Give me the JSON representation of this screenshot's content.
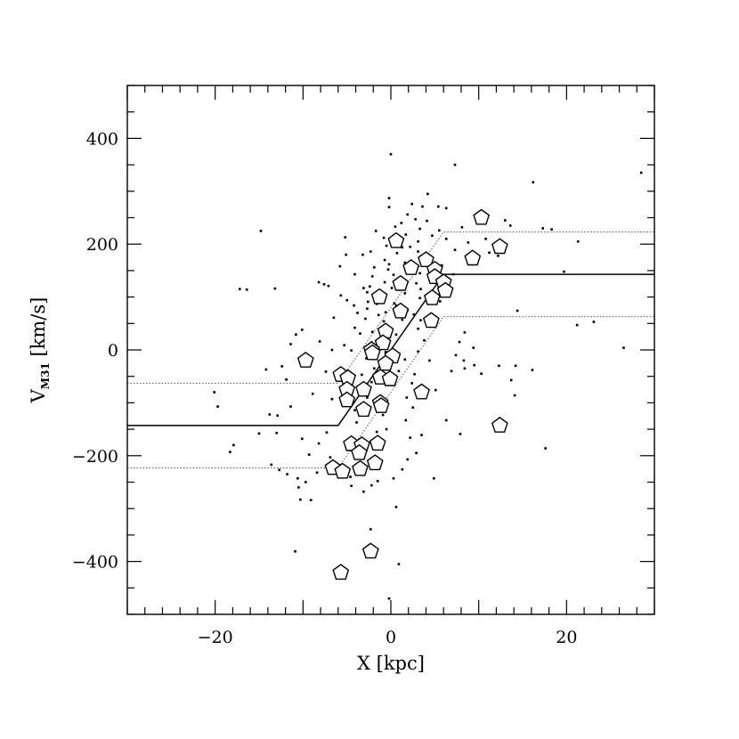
{
  "chart_data": {
    "type": "scatter",
    "xlabel": "X [kpc]",
    "ylabel_main": "V",
    "ylabel_sub": "M31",
    "ylabel_unit": " [km/s]",
    "xlim": [
      -30,
      30
    ],
    "ylim": [
      -500,
      500
    ],
    "x_ticks": [
      -20,
      0,
      20
    ],
    "x_tick_labels": [
      "−20",
      "0",
      "20"
    ],
    "y_ticks": [
      -400,
      -200,
      0,
      200,
      400
    ],
    "y_tick_labels": [
      "−400",
      "−200",
      "0",
      "200",
      "400"
    ],
    "x_minor_step": 2,
    "y_minor_step": 50,
    "grid": false,
    "lines": [
      {
        "style": "solid",
        "x": [
          -30,
          -6,
          6,
          30
        ],
        "y": [
          -143,
          -143,
          143,
          143
        ]
      },
      {
        "style": "dotted",
        "x": [
          -30,
          -6,
          6,
          30
        ],
        "y": [
          -63,
          -63,
          223,
          223
        ]
      },
      {
        "style": "dotted",
        "x": [
          -30,
          -6,
          6,
          30
        ],
        "y": [
          -223,
          -223,
          63,
          63
        ]
      }
    ],
    "pentagons": [
      [
        10.3,
        250
      ],
      [
        12.4,
        195
      ],
      [
        9.3,
        173
      ],
      [
        0.6,
        206
      ],
      [
        2.3,
        155
      ],
      [
        4,
        170
      ],
      [
        5,
        152
      ],
      [
        5,
        138
      ],
      [
        6,
        128
      ],
      [
        6.2,
        112
      ],
      [
        4.7,
        98
      ],
      [
        4.6,
        55
      ],
      [
        1.1,
        125
      ],
      [
        1.1,
        73
      ],
      [
        -1.3,
        100
      ],
      [
        -0.6,
        35
      ],
      [
        -0.9,
        13
      ],
      [
        -2.2,
        0
      ],
      [
        -2.1,
        -6
      ],
      [
        0.2,
        -12
      ],
      [
        -0.6,
        -26
      ],
      [
        -1.2,
        -52
      ],
      [
        -0.1,
        -55
      ],
      [
        -5.7,
        -47
      ],
      [
        -4.9,
        -53
      ],
      [
        -5,
        -75
      ],
      [
        -3.1,
        -75
      ],
      [
        -5,
        -95
      ],
      [
        -1.2,
        -100
      ],
      [
        -1.1,
        -106
      ],
      [
        -3.1,
        -113
      ],
      [
        3.5,
        -80
      ],
      [
        12.4,
        -143
      ],
      [
        -4.5,
        -178
      ],
      [
        -3.3,
        -180
      ],
      [
        -1.5,
        -177
      ],
      [
        -3.6,
        -195
      ],
      [
        -1.8,
        -214
      ],
      [
        -6.6,
        -223
      ],
      [
        -5.5,
        -230
      ],
      [
        -3.5,
        -225
      ],
      [
        -2.3,
        -381
      ],
      [
        -5.7,
        -421
      ],
      [
        -9.7,
        -20
      ]
    ],
    "points": [
      [
        0,
        370
      ],
      [
        7.3,
        350
      ],
      [
        28.5,
        335
      ],
      [
        16.2,
        317
      ],
      [
        4.2,
        295
      ],
      [
        -0.2,
        287
      ],
      [
        -0.2,
        270
      ],
      [
        2.4,
        276
      ],
      [
        3.6,
        271
      ],
      [
        5.4,
        271
      ],
      [
        6.3,
        268
      ],
      [
        1.9,
        256
      ],
      [
        2.8,
        247
      ],
      [
        4.1,
        244
      ],
      [
        1.2,
        240
      ],
      [
        0.5,
        233
      ],
      [
        3.3,
        229
      ],
      [
        5.5,
        226
      ],
      [
        8.1,
        232
      ],
      [
        13,
        245
      ],
      [
        13.6,
        235
      ],
      [
        -14.8,
        225
      ],
      [
        1.7,
        218
      ],
      [
        4.7,
        216
      ],
      [
        -5.2,
        213
      ],
      [
        -0.8,
        212
      ],
      [
        3.1,
        205
      ],
      [
        6.3,
        210
      ],
      [
        8.8,
        203
      ],
      [
        10.8,
        210
      ],
      [
        17.3,
        230
      ],
      [
        18.3,
        228
      ],
      [
        21.3,
        205
      ],
      [
        2.2,
        195
      ],
      [
        3.1,
        186
      ],
      [
        0.7,
        183
      ],
      [
        -2.3,
        186
      ],
      [
        7.3,
        189
      ],
      [
        11.2,
        184
      ],
      [
        12.2,
        178
      ],
      [
        3.5,
        178
      ],
      [
        -0.7,
        170
      ],
      [
        -0.2,
        162
      ],
      [
        1.6,
        165
      ],
      [
        5.8,
        160
      ],
      [
        -1.9,
        156
      ],
      [
        -0.3,
        152
      ],
      [
        2.7,
        148
      ],
      [
        0.3,
        142
      ],
      [
        -2.1,
        139
      ],
      [
        3.3,
        145
      ],
      [
        -4.1,
        143
      ],
      [
        7.1,
        143
      ],
      [
        19.7,
        148
      ],
      [
        -8.2,
        128
      ],
      [
        -7.6,
        124
      ],
      [
        -7.1,
        121
      ],
      [
        -0.7,
        128
      ],
      [
        2.9,
        126
      ],
      [
        -2.4,
        120
      ],
      [
        -17.2,
        115
      ],
      [
        -16.4,
        114
      ],
      [
        -13.2,
        116
      ],
      [
        0.1,
        117
      ],
      [
        3.4,
        115
      ],
      [
        -2.7,
        109
      ],
      [
        -0.6,
        105
      ],
      [
        1.6,
        107
      ],
      [
        -5.7,
        103
      ],
      [
        3.3,
        98
      ],
      [
        -5,
        94
      ],
      [
        -2.6,
        91
      ],
      [
        5.6,
        92
      ],
      [
        0.4,
        88
      ],
      [
        -4.2,
        84
      ],
      [
        0.6,
        84
      ],
      [
        -2.7,
        78
      ],
      [
        1.9,
        75
      ],
      [
        -3.8,
        70
      ],
      [
        -0.6,
        71
      ],
      [
        -1.4,
        66
      ],
      [
        2.6,
        67
      ],
      [
        -6.5,
        61
      ],
      [
        -2.9,
        59
      ],
      [
        1.3,
        57
      ],
      [
        3.4,
        56
      ],
      [
        -10.1,
        38
      ],
      [
        -10.8,
        29
      ],
      [
        -4.1,
        42
      ],
      [
        -0.9,
        40
      ],
      [
        3.1,
        40
      ],
      [
        -3.5,
        31
      ],
      [
        0.6,
        29
      ],
      [
        -11.4,
        11
      ],
      [
        -8.1,
        16
      ],
      [
        -5.3,
        9
      ],
      [
        -2.2,
        14
      ],
      [
        3.8,
        18
      ],
      [
        7.8,
        15
      ],
      [
        9.4,
        4
      ],
      [
        -6.7,
        0
      ],
      [
        -4.5,
        -1
      ],
      [
        -0.6,
        -4
      ],
      [
        3.1,
        -3
      ],
      [
        8.3,
        -20
      ],
      [
        9.5,
        -29
      ],
      [
        -2.8,
        -16
      ],
      [
        1.6,
        -18
      ],
      [
        7.4,
        -10
      ],
      [
        4.4,
        -20
      ],
      [
        8.4,
        -35
      ],
      [
        12.3,
        -30
      ],
      [
        10.3,
        -45
      ],
      [
        -12.4,
        -31
      ],
      [
        -14.2,
        -37
      ],
      [
        -7.4,
        -41
      ],
      [
        0.9,
        -40
      ],
      [
        2.7,
        -46
      ],
      [
        6.9,
        -40
      ],
      [
        13.7,
        -57
      ],
      [
        16.1,
        -38
      ],
      [
        -11.9,
        -56
      ],
      [
        -4.6,
        -64
      ],
      [
        -2.2,
        -61
      ],
      [
        2.4,
        -63
      ],
      [
        5.1,
        -76
      ],
      [
        14.1,
        -86
      ],
      [
        -20.1,
        -80
      ],
      [
        -19.7,
        -107
      ],
      [
        -11.4,
        -107
      ],
      [
        -13.8,
        -122
      ],
      [
        -12.9,
        -124
      ],
      [
        -8.9,
        -83
      ],
      [
        -6.7,
        -93
      ],
      [
        -2.7,
        -90
      ],
      [
        1.8,
        -90
      ],
      [
        2.5,
        -109
      ],
      [
        -0.9,
        -123
      ],
      [
        1.7,
        -133
      ],
      [
        6.3,
        -133
      ],
      [
        -15,
        -158
      ],
      [
        -13,
        -157
      ],
      [
        -10.1,
        -168
      ],
      [
        -8.2,
        -177
      ],
      [
        -7.3,
        -156
      ],
      [
        -18.3,
        -193
      ],
      [
        -17.9,
        -180
      ],
      [
        -9.3,
        -198
      ],
      [
        -6.9,
        -203
      ],
      [
        -1.6,
        -155
      ],
      [
        -13.6,
        -217
      ],
      [
        -12.7,
        -227
      ],
      [
        -11.8,
        -235
      ],
      [
        -10.6,
        -243
      ],
      [
        -10.5,
        -260
      ],
      [
        -9.7,
        -250
      ],
      [
        -8.4,
        -232
      ],
      [
        -6.7,
        -229
      ],
      [
        -4.6,
        -240
      ],
      [
        -4.5,
        -257
      ],
      [
        -2.2,
        -256
      ],
      [
        -1.5,
        -248
      ],
      [
        0.3,
        -243
      ],
      [
        -3.1,
        -268
      ],
      [
        0.6,
        -297
      ],
      [
        -10.3,
        -283
      ],
      [
        -9.1,
        -284
      ],
      [
        -10.9,
        -381
      ],
      [
        -2.3,
        -339
      ],
      [
        0.9,
        -405
      ],
      [
        -0.2,
        -470
      ],
      [
        1.3,
        -226
      ],
      [
        1.9,
        -207
      ],
      [
        4.9,
        -243
      ],
      [
        2.9,
        -195
      ],
      [
        17.6,
        -186
      ],
      [
        7.9,
        -159
      ],
      [
        21.2,
        47
      ],
      [
        14.4,
        74
      ],
      [
        23.1,
        53
      ],
      [
        26.5,
        4
      ],
      [
        14.2,
        -30
      ],
      [
        8.4,
        33
      ],
      [
        -0.5,
        197
      ],
      [
        1.3,
        194
      ],
      [
        -1.7,
        225
      ],
      [
        -3.2,
        180
      ],
      [
        -5.1,
        180
      ],
      [
        -5.8,
        158
      ],
      [
        -3.1,
        117
      ],
      [
        -1.6,
        87
      ],
      [
        -0.8,
        54
      ],
      [
        -2.1,
        34
      ],
      [
        -1.9,
        -35
      ],
      [
        -3.3,
        -47
      ],
      [
        -4.1,
        -114
      ],
      [
        -3.9,
        -137
      ],
      [
        -0.5,
        -150
      ],
      [
        2.2,
        -166
      ],
      [
        3.5,
        -161
      ]
    ]
  }
}
